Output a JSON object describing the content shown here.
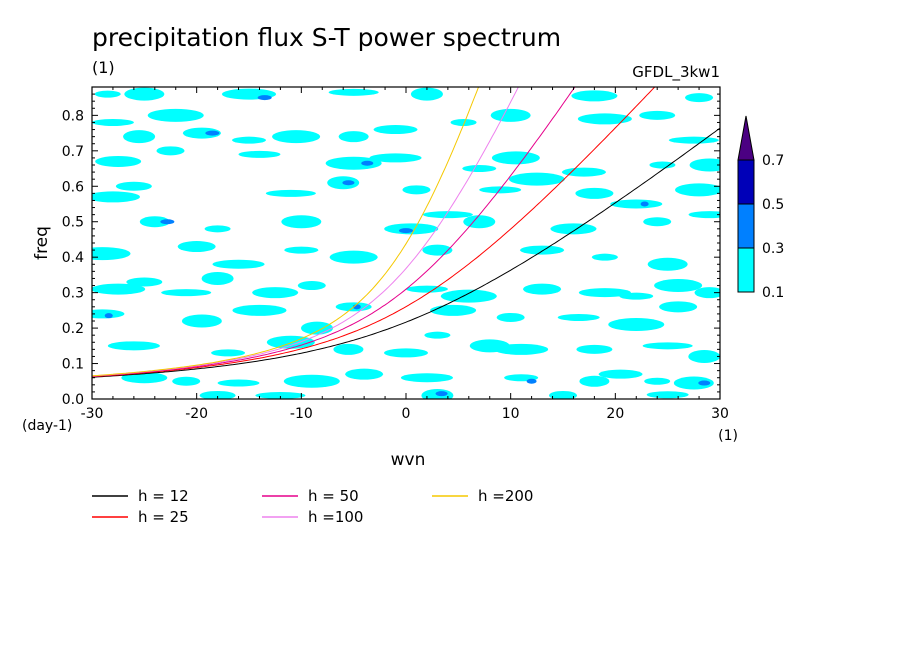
{
  "chart_data": {
    "type": "heatmap",
    "title": "precipitation flux S-T power spectrum",
    "subtitle_left": "(1)",
    "subtitle_right": "GFDL_3kw1",
    "xlabel": "wvn",
    "x_unit": "(1)",
    "ylabel": "freq",
    "y_unit": "(day-1)",
    "xlim": [
      -30,
      30
    ],
    "ylim": [
      0,
      0.88
    ],
    "x_ticks": [
      -30,
      -20,
      -10,
      0,
      10,
      20,
      30
    ],
    "x_tick_labels": [
      "-30",
      "-20",
      "-10",
      "0",
      "10",
      "20",
      "30"
    ],
    "y_ticks": [
      0,
      0.1,
      0.2,
      0.3,
      0.4,
      0.5,
      0.6,
      0.7,
      0.8
    ],
    "y_tick_labels": [
      "0.0",
      "0.1",
      "0.2",
      "0.3",
      "0.4",
      "0.5",
      "0.6",
      "0.7",
      "0.8"
    ],
    "contour_levels": [
      0.1,
      0.3,
      0.5,
      0.7
    ],
    "colorbar_labels": [
      "0.1",
      "0.3",
      "0.5",
      "0.7"
    ],
    "colorbar_colors": [
      "#00ffff",
      "#0080ff",
      "#0000b8",
      "#4b0082"
    ],
    "dispersion_curves": [
      {
        "name": "h = 12",
        "h": 12,
        "color": "#000000"
      },
      {
        "name": "h = 25",
        "h": 25,
        "color": "#ff0000"
      },
      {
        "name": "h = 50",
        "h": 50,
        "color": "#e6008c"
      },
      {
        "name": "h =100",
        "h": 100,
        "color": "#ee82ee"
      },
      {
        "name": "h =200",
        "h": 200,
        "color": "#f5c800"
      }
    ],
    "blobs": [
      {
        "x": -28.5,
        "y": 0.86,
        "level": 1
      },
      {
        "x": -25.0,
        "y": 0.86,
        "level": 1
      },
      {
        "x": -15.0,
        "y": 0.86,
        "level": 1
      },
      {
        "x": -13.5,
        "y": 0.85,
        "level": 2
      },
      {
        "x": -5.0,
        "y": 0.865,
        "level": 1
      },
      {
        "x": 2.0,
        "y": 0.86,
        "level": 1
      },
      {
        "x": 18.0,
        "y": 0.855,
        "level": 1
      },
      {
        "x": 28.0,
        "y": 0.85,
        "level": 1
      },
      {
        "x": -28.0,
        "y": 0.78,
        "level": 1
      },
      {
        "x": -22.0,
        "y": 0.8,
        "level": 1
      },
      {
        "x": -19.5,
        "y": 0.75,
        "level": 1
      },
      {
        "x": -18.5,
        "y": 0.75,
        "level": 2
      },
      {
        "x": -15.0,
        "y": 0.73,
        "level": 1
      },
      {
        "x": -10.5,
        "y": 0.74,
        "level": 1
      },
      {
        "x": -5.0,
        "y": 0.74,
        "level": 1
      },
      {
        "x": -1.0,
        "y": 0.76,
        "level": 1
      },
      {
        "x": 5.5,
        "y": 0.78,
        "level": 1
      },
      {
        "x": 10.0,
        "y": 0.8,
        "level": 1
      },
      {
        "x": 19.0,
        "y": 0.79,
        "level": 1
      },
      {
        "x": 24.0,
        "y": 0.8,
        "level": 1
      },
      {
        "x": 27.5,
        "y": 0.73,
        "level": 1
      },
      {
        "x": -25.5,
        "y": 0.74,
        "level": 1
      },
      {
        "x": -27.5,
        "y": 0.67,
        "level": 1
      },
      {
        "x": -22.5,
        "y": 0.7,
        "level": 1
      },
      {
        "x": -14.0,
        "y": 0.69,
        "level": 1
      },
      {
        "x": -5.0,
        "y": 0.665,
        "level": 1
      },
      {
        "x": -3.7,
        "y": 0.665,
        "level": 2
      },
      {
        "x": -1.0,
        "y": 0.68,
        "level": 1
      },
      {
        "x": 7.0,
        "y": 0.65,
        "level": 1
      },
      {
        "x": 10.5,
        "y": 0.68,
        "level": 1
      },
      {
        "x": 13.0,
        "y": 0.62,
        "level": 1
      },
      {
        "x": 17.0,
        "y": 0.64,
        "level": 1
      },
      {
        "x": 24.5,
        "y": 0.66,
        "level": 1
      },
      {
        "x": 29.0,
        "y": 0.66,
        "level": 1
      },
      {
        "x": -28.0,
        "y": 0.57,
        "level": 1
      },
      {
        "x": -26.0,
        "y": 0.6,
        "level": 1
      },
      {
        "x": -11.0,
        "y": 0.58,
        "level": 1
      },
      {
        "x": -6.0,
        "y": 0.61,
        "level": 1
      },
      {
        "x": -5.5,
        "y": 0.61,
        "level": 2
      },
      {
        "x": 1.0,
        "y": 0.59,
        "level": 1
      },
      {
        "x": 9.0,
        "y": 0.59,
        "level": 1
      },
      {
        "x": 12.5,
        "y": 0.62,
        "level": 1
      },
      {
        "x": 18.0,
        "y": 0.58,
        "level": 1
      },
      {
        "x": 22.0,
        "y": 0.55,
        "level": 1
      },
      {
        "x": 22.8,
        "y": 0.55,
        "level": 2
      },
      {
        "x": 28.0,
        "y": 0.59,
        "level": 1
      },
      {
        "x": -24.0,
        "y": 0.5,
        "level": 1
      },
      {
        "x": -22.8,
        "y": 0.5,
        "level": 2
      },
      {
        "x": -18.0,
        "y": 0.48,
        "level": 1
      },
      {
        "x": -10.0,
        "y": 0.5,
        "level": 1
      },
      {
        "x": 0.5,
        "y": 0.48,
        "level": 1
      },
      {
        "x": 0.0,
        "y": 0.475,
        "level": 2
      },
      {
        "x": 4.0,
        "y": 0.52,
        "level": 1
      },
      {
        "x": 7.0,
        "y": 0.5,
        "level": 1
      },
      {
        "x": 16.0,
        "y": 0.48,
        "level": 1
      },
      {
        "x": 24.0,
        "y": 0.5,
        "level": 1
      },
      {
        "x": 29.0,
        "y": 0.52,
        "level": 1
      },
      {
        "x": -29.0,
        "y": 0.41,
        "level": 1
      },
      {
        "x": -20.0,
        "y": 0.43,
        "level": 1
      },
      {
        "x": -16.0,
        "y": 0.38,
        "level": 1
      },
      {
        "x": -10.0,
        "y": 0.42,
        "level": 1
      },
      {
        "x": -5.0,
        "y": 0.4,
        "level": 1
      },
      {
        "x": 3.0,
        "y": 0.42,
        "level": 1
      },
      {
        "x": 13.0,
        "y": 0.42,
        "level": 1
      },
      {
        "x": 19.0,
        "y": 0.4,
        "level": 1
      },
      {
        "x": 25.0,
        "y": 0.38,
        "level": 1
      },
      {
        "x": -27.5,
        "y": 0.31,
        "level": 1
      },
      {
        "x": -25.0,
        "y": 0.33,
        "level": 1
      },
      {
        "x": -21.0,
        "y": 0.3,
        "level": 1
      },
      {
        "x": -18.0,
        "y": 0.34,
        "level": 1
      },
      {
        "x": -12.5,
        "y": 0.3,
        "level": 1
      },
      {
        "x": -9.0,
        "y": 0.32,
        "level": 1
      },
      {
        "x": 2.0,
        "y": 0.31,
        "level": 1
      },
      {
        "x": 6.0,
        "y": 0.29,
        "level": 1
      },
      {
        "x": 13.0,
        "y": 0.31,
        "level": 1
      },
      {
        "x": 19.0,
        "y": 0.3,
        "level": 1
      },
      {
        "x": 22.0,
        "y": 0.29,
        "level": 1
      },
      {
        "x": 26.0,
        "y": 0.32,
        "level": 1
      },
      {
        "x": 29.0,
        "y": 0.3,
        "level": 1
      },
      {
        "x": -29.0,
        "y": 0.24,
        "level": 1
      },
      {
        "x": -28.4,
        "y": 0.235,
        "level": 2
      },
      {
        "x": -19.5,
        "y": 0.22,
        "level": 1
      },
      {
        "x": -14.0,
        "y": 0.25,
        "level": 1
      },
      {
        "x": -5.0,
        "y": 0.26,
        "level": 1
      },
      {
        "x": -4.7,
        "y": 0.26,
        "level": 2
      },
      {
        "x": -8.5,
        "y": 0.2,
        "level": 1
      },
      {
        "x": 4.5,
        "y": 0.25,
        "level": 1
      },
      {
        "x": 10.0,
        "y": 0.23,
        "level": 1
      },
      {
        "x": 16.5,
        "y": 0.23,
        "level": 1
      },
      {
        "x": 22.0,
        "y": 0.21,
        "level": 1
      },
      {
        "x": 26.0,
        "y": 0.26,
        "level": 1
      },
      {
        "x": -26.0,
        "y": 0.15,
        "level": 1
      },
      {
        "x": -17.0,
        "y": 0.13,
        "level": 1
      },
      {
        "x": -11.0,
        "y": 0.16,
        "level": 1
      },
      {
        "x": -5.5,
        "y": 0.14,
        "level": 1
      },
      {
        "x": 0.0,
        "y": 0.13,
        "level": 1
      },
      {
        "x": 3.0,
        "y": 0.18,
        "level": 1
      },
      {
        "x": 8.0,
        "y": 0.15,
        "level": 1
      },
      {
        "x": 11.0,
        "y": 0.14,
        "level": 1
      },
      {
        "x": 18.0,
        "y": 0.14,
        "level": 1
      },
      {
        "x": 25.0,
        "y": 0.15,
        "level": 1
      },
      {
        "x": 28.5,
        "y": 0.12,
        "level": 1
      },
      {
        "x": -25.0,
        "y": 0.06,
        "level": 1
      },
      {
        "x": -21.0,
        "y": 0.05,
        "level": 1
      },
      {
        "x": -16.0,
        "y": 0.045,
        "level": 1
      },
      {
        "x": -9.0,
        "y": 0.05,
        "level": 1
      },
      {
        "x": -4.0,
        "y": 0.07,
        "level": 1
      },
      {
        "x": 2.0,
        "y": 0.06,
        "level": 1
      },
      {
        "x": 11.0,
        "y": 0.06,
        "level": 1
      },
      {
        "x": 12.0,
        "y": 0.05,
        "level": 2
      },
      {
        "x": 18.0,
        "y": 0.05,
        "level": 1
      },
      {
        "x": 20.5,
        "y": 0.07,
        "level": 1
      },
      {
        "x": 24.0,
        "y": 0.05,
        "level": 1
      },
      {
        "x": 27.5,
        "y": 0.045,
        "level": 1
      },
      {
        "x": 28.5,
        "y": 0.045,
        "level": 2
      },
      {
        "x": -18.0,
        "y": 0.01,
        "level": 1
      },
      {
        "x": -12.0,
        "y": 0.01,
        "level": 1
      },
      {
        "x": 3.0,
        "y": 0.01,
        "level": 1
      },
      {
        "x": 3.4,
        "y": 0.015,
        "level": 2
      },
      {
        "x": 15.0,
        "y": 0.01,
        "level": 1
      },
      {
        "x": 25.0,
        "y": 0.012,
        "level": 1
      }
    ]
  }
}
